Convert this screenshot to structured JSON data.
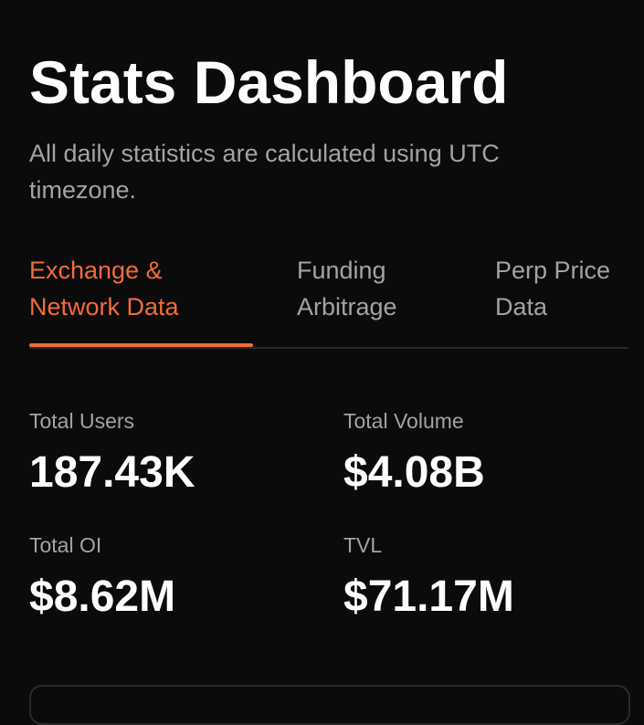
{
  "header": {
    "title": "Stats Dashboard",
    "subtitle": "All daily statistics are calculated using UTC timezone."
  },
  "tabs": [
    "Exchange & Network Data",
    "Funding Arbitrage",
    "Perp Price Data"
  ],
  "stats": [
    {
      "label": "Total Users",
      "value": "187.43K"
    },
    {
      "label": "Total Volume",
      "value": "$4.08B"
    },
    {
      "label": "Total OI",
      "value": "$8.62M"
    },
    {
      "label": "TVL",
      "value": "$71.17M"
    }
  ]
}
